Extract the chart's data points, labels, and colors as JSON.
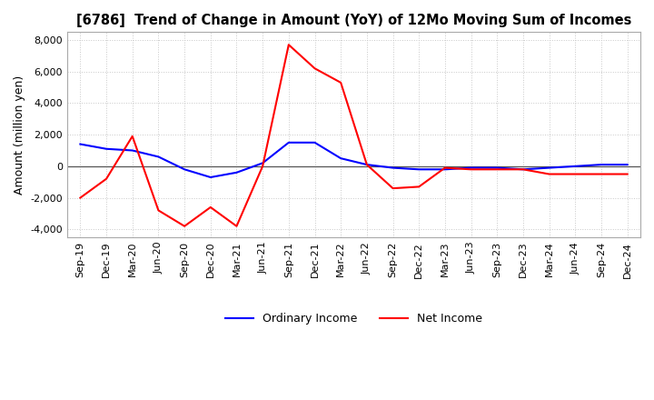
{
  "title": "[6786]  Trend of Change in Amount (YoY) of 12Mo Moving Sum of Incomes",
  "ylabel": "Amount (million yen)",
  "ylim": [
    -4500,
    8500
  ],
  "yticks": [
    -4000,
    -2000,
    0,
    2000,
    4000,
    6000,
    8000
  ],
  "background_color": "#ffffff",
  "grid_color": "#c8c8c8",
  "ordinary_income_color": "#0000ff",
  "net_income_color": "#ff0000",
  "x_labels": [
    "Sep-19",
    "Dec-19",
    "Mar-20",
    "Jun-20",
    "Sep-20",
    "Dec-20",
    "Mar-21",
    "Jun-21",
    "Sep-21",
    "Dec-21",
    "Mar-22",
    "Jun-22",
    "Sep-22",
    "Dec-22",
    "Mar-23",
    "Jun-23",
    "Sep-23",
    "Dec-23",
    "Mar-24",
    "Jun-24",
    "Sep-24",
    "Dec-24"
  ],
  "ordinary_income": [
    1400,
    1100,
    1000,
    600,
    -200,
    -700,
    -400,
    200,
    1500,
    1500,
    500,
    100,
    -100,
    -200,
    -200,
    -100,
    -100,
    -200,
    -100,
    0,
    100,
    100
  ],
  "net_income": [
    -2000,
    -800,
    1900,
    -2800,
    -3800,
    -2600,
    -3800,
    0,
    7700,
    6200,
    5300,
    100,
    -1400,
    -1300,
    -100,
    -200,
    -200,
    -200,
    -500,
    -500,
    -500,
    -500
  ]
}
